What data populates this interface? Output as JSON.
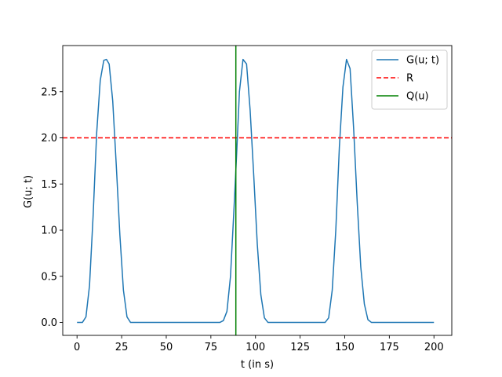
{
  "chart_data": {
    "type": "line",
    "xlabel": "t (in s)",
    "ylabel": "G(u; t)",
    "xlim": [
      -8,
      210
    ],
    "ylim": [
      -0.14,
      3.0
    ],
    "xticks": [
      0,
      25,
      50,
      75,
      100,
      125,
      150,
      175,
      200
    ],
    "xtick_labels": [
      "0",
      "25",
      "50",
      "75",
      "100",
      "125",
      "150",
      "175",
      "200"
    ],
    "yticks": [
      0.0,
      0.5,
      1.0,
      1.5,
      2.0,
      2.5
    ],
    "ytick_labels": [
      "0.0",
      "0.5",
      "1.0",
      "1.5",
      "2.0",
      "2.5"
    ],
    "grid": false,
    "legend_position": "top-right",
    "series": [
      {
        "name": "G(u; t)",
        "kind": "line",
        "color": "#1f77b4",
        "style": "solid",
        "x": [
          0,
          3,
          5,
          7,
          9,
          11,
          13,
          15,
          16.5,
          18,
          20,
          22,
          24,
          26,
          28,
          30,
          40,
          50,
          60,
          70,
          80,
          82,
          84,
          86,
          88,
          89.5,
          91,
          93,
          95,
          97,
          99,
          101,
          103,
          105,
          107,
          120,
          130,
          139,
          141,
          143,
          145,
          147,
          149,
          151,
          153,
          155,
          157,
          159,
          161,
          163,
          165,
          175,
          185,
          200
        ],
        "y": [
          0.0,
          0.0,
          0.06,
          0.4,
          1.15,
          2.05,
          2.62,
          2.84,
          2.85,
          2.8,
          2.4,
          1.7,
          0.95,
          0.35,
          0.06,
          0.0,
          0.0,
          0.0,
          0.0,
          0.0,
          0.0,
          0.02,
          0.12,
          0.5,
          1.25,
          1.85,
          2.5,
          2.85,
          2.8,
          2.3,
          1.6,
          0.85,
          0.3,
          0.05,
          0.0,
          0.0,
          0.0,
          0.0,
          0.05,
          0.35,
          1.0,
          1.9,
          2.55,
          2.85,
          2.75,
          2.1,
          1.3,
          0.6,
          0.2,
          0.03,
          0.0,
          0.0,
          0.0,
          0.0
        ]
      },
      {
        "name": "R",
        "kind": "hline",
        "color": "#ff0000",
        "style": "dashed",
        "y": 2.0
      },
      {
        "name": "Q(u)",
        "kind": "vline",
        "color": "#008000",
        "style": "solid",
        "x": 89
      }
    ]
  }
}
